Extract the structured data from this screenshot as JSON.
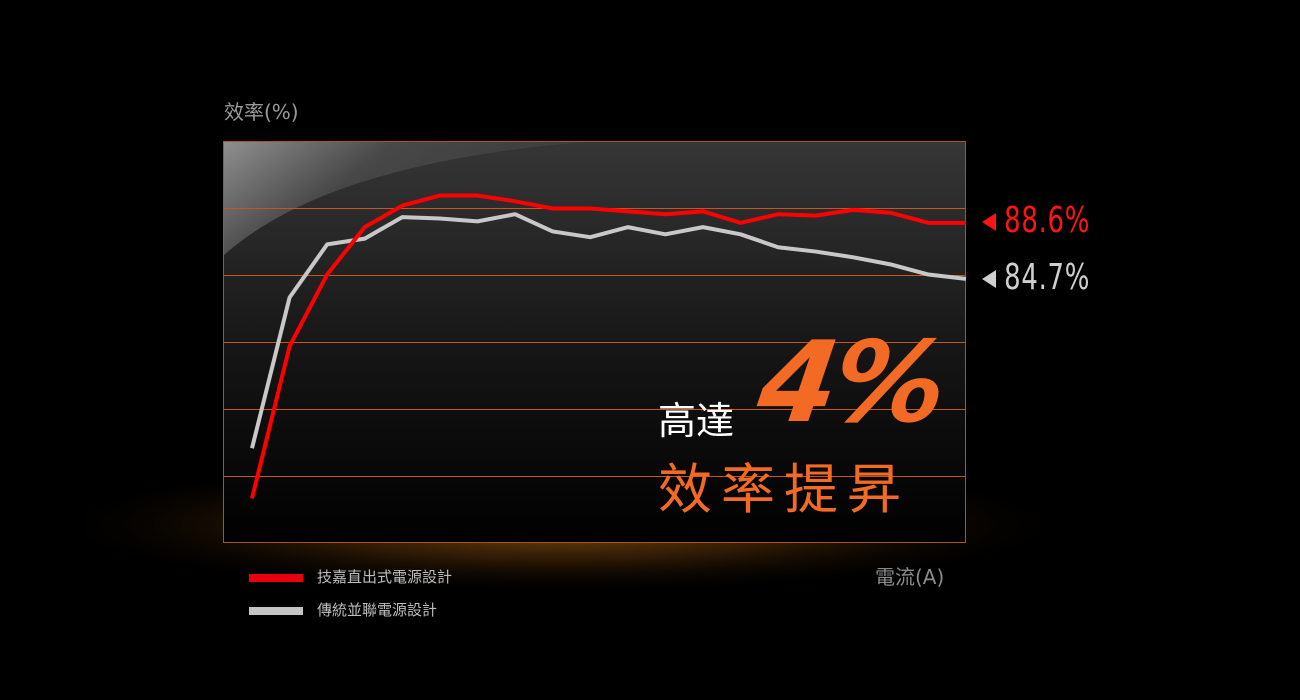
{
  "chart_data": {
    "type": "line",
    "title": "",
    "ylabel": "效率(%)",
    "xlabel": "電流(A)",
    "ylim": [
      66.3,
      94.3
    ],
    "grid": "horizontal",
    "legend": "bottom-left",
    "x": [
      0,
      1,
      2,
      3,
      4,
      5,
      6,
      7,
      8,
      9,
      10,
      11,
      12,
      13,
      14,
      15,
      16,
      17,
      18,
      19
    ],
    "series": [
      {
        "name": "技嘉直出式電源設計",
        "color": "#ff0000",
        "values": [
          69.4,
          80.0,
          85.0,
          88.3,
          89.8,
          90.5,
          90.5,
          90.1,
          89.6,
          89.6,
          89.4,
          89.2,
          89.4,
          88.6,
          89.2,
          89.1,
          89.5,
          89.3,
          88.6,
          88.6
        ],
        "end_label": "88.6%"
      },
      {
        "name": "傳統並聯電源設計",
        "color": "#c8c8c8",
        "values": [
          72.9,
          83.4,
          87.1,
          87.5,
          89.0,
          88.9,
          88.7,
          89.2,
          88.0,
          87.6,
          88.3,
          87.8,
          88.3,
          87.8,
          86.9,
          86.6,
          86.2,
          85.7,
          85.0,
          84.7
        ],
        "end_label": "84.7%"
      }
    ]
  },
  "headline": {
    "prefix": "高達",
    "value": "4%",
    "suffix": "效率提昇"
  },
  "colors": {
    "accent": "#f26a24",
    "grid": "#c8561c",
    "red": "#ff0000",
    "gray": "#c8c8c8"
  }
}
